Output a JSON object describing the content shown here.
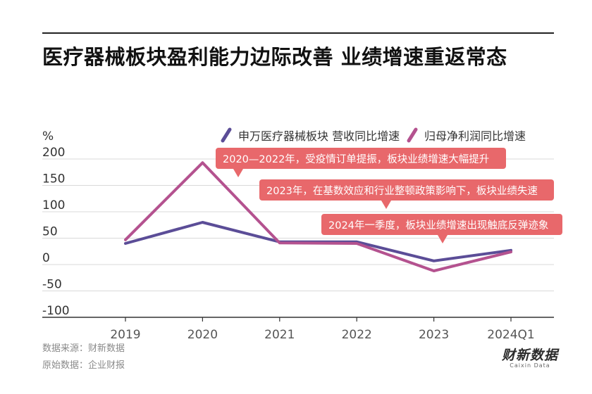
{
  "title": "医疗器械板块盈利能力边际改善 业绩增速重返常态",
  "footer": {
    "source": "数据来源：财新数据",
    "raw": "原始数据：企业财报"
  },
  "brand": {
    "name": "财新数据",
    "sub": "Caixin Data"
  },
  "colors": {
    "series1": "#5b4d97",
    "series2": "#b4528f",
    "annotation_bg": "#e8686b",
    "grid": "#d9d9d9"
  },
  "chart_data": {
    "type": "line",
    "unit_label": "%",
    "categories": [
      "2019",
      "2020",
      "2021",
      "2022",
      "2023",
      "2024Q1"
    ],
    "y_ticks": [
      200,
      150,
      100,
      50,
      0,
      -50,
      -100
    ],
    "ylim": [
      -100,
      200
    ],
    "grid": true,
    "legend_position": "top-right",
    "series": [
      {
        "name": "申万医疗器械板块 营收同比增速",
        "values": [
          40,
          80,
          43,
          43,
          7,
          27
        ]
      },
      {
        "name": "归母净利润同比增速",
        "values": [
          47,
          193,
          41,
          40,
          -12,
          24
        ]
      }
    ],
    "annotations": [
      "2020—2022年，受疫情订单提振，板块业绩增速大幅提升",
      "2023年，在基数效应和行业整顿政策影响下，板块业绩失速",
      "2024年一季度，板块业绩增速出现触底反弹迹象"
    ]
  }
}
